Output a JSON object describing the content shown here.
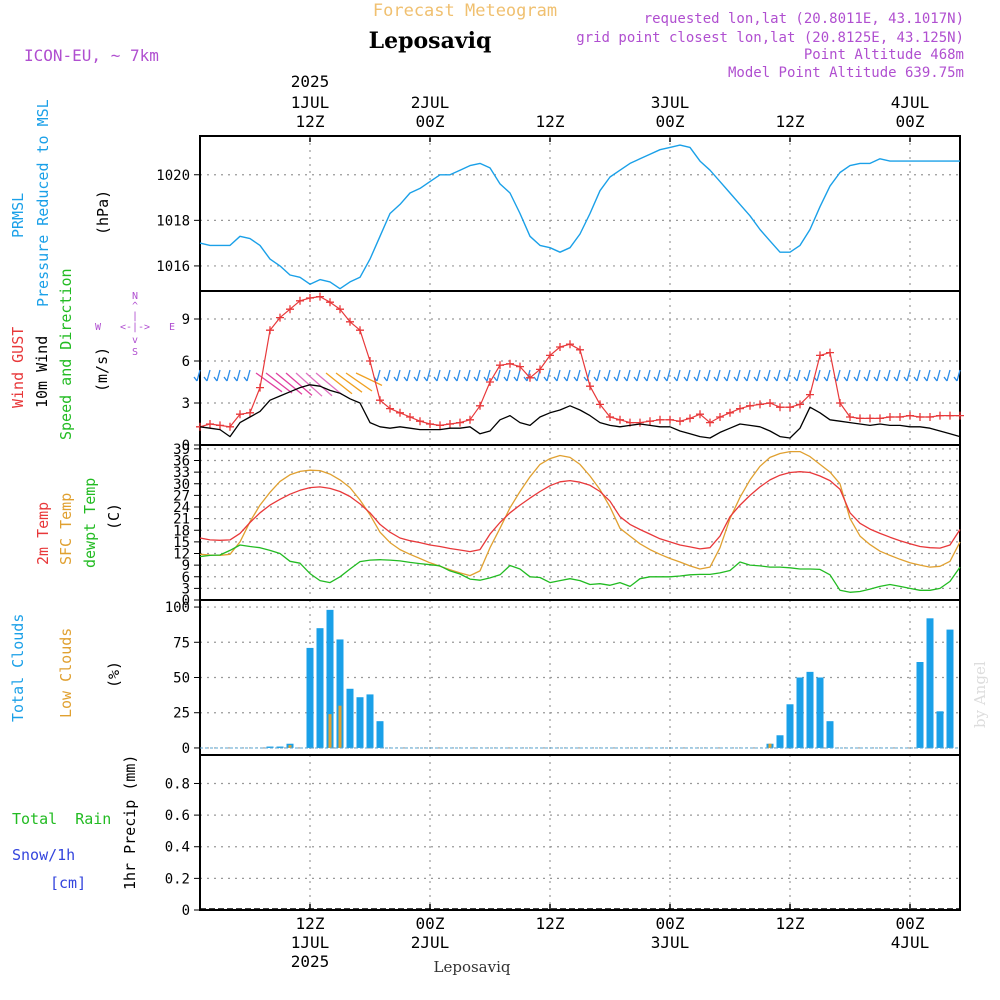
{
  "header": {
    "title": "Forecast Meteogram",
    "location": "Leposaviq",
    "model": "ICON-EU, ~ 7km",
    "requested": "requested lon,lat (20.8011E, 43.1017N)",
    "grid_point": "grid point closest lon,lat (20.8125E, 43.125N)",
    "point_altitude": "Point Altitude 468m",
    "model_altitude": "Model Point Altitude 639.75m",
    "footer_location": "Leposaviq",
    "watermark": "by Angel"
  },
  "colors": {
    "pressure": "#1aa0e8",
    "gust": "#e8383a",
    "wind": "#000000",
    "temp": "#e8383a",
    "sfc_temp": "#e0a030",
    "dewpt": "#22bb22",
    "total_clouds": "#1aa0e8",
    "low_clouds": "#e0a030",
    "rain": "#22bb22",
    "snow": "#3344dd",
    "purple": "#b04fd0",
    "title": "#f0c070"
  },
  "time_axis": {
    "top": [
      {
        "t": 0,
        "l1": "2025",
        "l2": "1JUL",
        "l3": "12Z"
      },
      {
        "t": 12,
        "l1": "",
        "l2": "2JUL",
        "l3": "00Z"
      },
      {
        "t": 24,
        "l1": "",
        "l2": "",
        "l3": "12Z"
      },
      {
        "t": 36,
        "l1": "",
        "l2": "3JUL",
        "l3": "00Z"
      },
      {
        "t": 48,
        "l1": "",
        "l2": "",
        "l3": "12Z"
      },
      {
        "t": 60,
        "l1": "",
        "l2": "4JUL",
        "l3": "00Z"
      }
    ],
    "bottom": [
      {
        "t": 0,
        "l1": "12Z",
        "l2": "1JUL",
        "l3": "2025"
      },
      {
        "t": 12,
        "l1": "00Z",
        "l2": "2JUL",
        "l3": ""
      },
      {
        "t": 24,
        "l1": "12Z",
        "l2": "",
        "l3": ""
      },
      {
        "t": 36,
        "l1": "00Z",
        "l2": "3JUL",
        "l3": ""
      },
      {
        "t": 48,
        "l1": "12Z",
        "l2": "",
        "l3": ""
      },
      {
        "t": 60,
        "l1": "00Z",
        "l2": "4JUL",
        "l3": ""
      }
    ]
  },
  "labels": {
    "pressure": [
      "PRMSL",
      "Pressure Reduced to MSL"
    ],
    "pressure_unit": "(hPa)",
    "wind_gust": "Wind GUST",
    "wind_10m": "10m Wind",
    "wind_speed": "Speed and Direction",
    "wind_unit": "(m/s)",
    "compass": {
      "n": "N",
      "s": "S",
      "w": "W",
      "e": "E",
      "ns": "|",
      "we": "<-|->",
      "ns_arrows": [
        "^",
        "v"
      ]
    },
    "temp_2m": "2m Temp",
    "temp_sfc": "SFC Temp",
    "temp_dew": "dewpt Temp",
    "temp_unit": "(C)",
    "clouds_total": "Total Clouds",
    "clouds_low": "Low Clouds",
    "clouds_unit": "(%)",
    "rain": "Total  Rain",
    "snow": "Snow/1h",
    "snow_unit": "[cm]",
    "precip": "1hr Precip (mm)"
  },
  "chart_data": [
    {
      "type": "line",
      "panel": "pressure",
      "xlabel": "",
      "ylabel": "(hPa)",
      "yticks": [
        1016,
        1018,
        1020
      ],
      "ylim": [
        1014.9,
        1021.7
      ],
      "x": [
        -11,
        -10,
        -9,
        -8,
        -7,
        -6,
        -5,
        -4,
        -3,
        -2,
        -1,
        0,
        1,
        2,
        3,
        4,
        5,
        6,
        7,
        8,
        9,
        10,
        11,
        12,
        13,
        14,
        15,
        16,
        17,
        18,
        19,
        20,
        21,
        22,
        23,
        24,
        25,
        26,
        27,
        28,
        29,
        30,
        31,
        32,
        33,
        34,
        35,
        36,
        37,
        38,
        39,
        40,
        41,
        42,
        43,
        44,
        45,
        46,
        47,
        48,
        49,
        50,
        51,
        52,
        53,
        54,
        55,
        56,
        57,
        58,
        59,
        60,
        61,
        62,
        63,
        64,
        65
      ],
      "series": [
        {
          "name": "PRMSL",
          "values": [
            1017.0,
            1016.9,
            1016.9,
            1016.9,
            1017.3,
            1017.2,
            1016.9,
            1016.3,
            1016.0,
            1015.6,
            1015.5,
            1015.2,
            1015.4,
            1015.3,
            1015.0,
            1015.3,
            1015.5,
            1016.3,
            1017.3,
            1018.3,
            1018.7,
            1019.2,
            1019.4,
            1019.7,
            1020.0,
            1020.0,
            1020.2,
            1020.4,
            1020.5,
            1020.3,
            1019.6,
            1019.2,
            1018.3,
            1017.3,
            1016.9,
            1016.8,
            1016.6,
            1016.8,
            1017.4,
            1018.3,
            1019.3,
            1019.9,
            1020.2,
            1020.5,
            1020.7,
            1020.9,
            1021.1,
            1021.2,
            1021.3,
            1021.2,
            1020.6,
            1020.2,
            1019.7,
            1019.2,
            1018.7,
            1018.2,
            1017.6,
            1017.1,
            1016.6,
            1016.6,
            1016.9,
            1017.6,
            1018.6,
            1019.5,
            1020.1,
            1020.4,
            1020.5,
            1020.5,
            1020.7,
            1020.6,
            1020.6,
            1020.6,
            1020.6,
            1020.6,
            1020.6,
            1020.6,
            1020.6
          ]
        }
      ]
    },
    {
      "type": "line",
      "panel": "wind",
      "ylabel": "(m/s)",
      "yticks": [
        0,
        3,
        6,
        9
      ],
      "ylim": [
        0,
        11
      ],
      "x": [
        -11,
        -10,
        -9,
        -8,
        -7,
        -6,
        -5,
        -4,
        -3,
        -2,
        -1,
        0,
        1,
        2,
        3,
        4,
        5,
        6,
        7,
        8,
        9,
        10,
        11,
        12,
        13,
        14,
        15,
        16,
        17,
        18,
        19,
        20,
        21,
        22,
        23,
        24,
        25,
        26,
        27,
        28,
        29,
        30,
        31,
        32,
        33,
        34,
        35,
        36,
        37,
        38,
        39,
        40,
        41,
        42,
        43,
        44,
        45,
        46,
        47,
        48,
        49,
        50,
        51,
        52,
        53,
        54,
        55,
        56,
        57,
        58,
        59,
        60,
        61,
        62,
        63,
        64,
        65
      ],
      "series": [
        {
          "name": "Wind GUST",
          "values": [
            1.3,
            1.5,
            1.4,
            1.3,
            2.2,
            2.3,
            4.1,
            8.2,
            9.1,
            9.7,
            10.3,
            10.5,
            10.6,
            10.2,
            9.7,
            8.8,
            8.2,
            6.0,
            3.2,
            2.6,
            2.3,
            2.0,
            1.7,
            1.5,
            1.4,
            1.5,
            1.6,
            1.8,
            2.8,
            4.5,
            5.7,
            5.8,
            5.6,
            4.8,
            5.4,
            6.4,
            7.0,
            7.2,
            6.8,
            4.2,
            2.9,
            2.0,
            1.8,
            1.6,
            1.6,
            1.7,
            1.8,
            1.8,
            1.7,
            1.9,
            2.2,
            1.6,
            2.0,
            2.3,
            2.6,
            2.8,
            2.9,
            3.0,
            2.7,
            2.7,
            2.9,
            3.6,
            6.4,
            6.6,
            3.0,
            2.0,
            1.9,
            1.9,
            1.9,
            2.0,
            2.0,
            2.1,
            2.0,
            2.0,
            2.1,
            2.1,
            2.1
          ]
        },
        {
          "name": "10m Wind",
          "values": [
            1.3,
            1.2,
            1.1,
            0.6,
            1.6,
            2.0,
            2.4,
            3.2,
            3.5,
            3.8,
            4.1,
            4.3,
            4.2,
            3.9,
            3.7,
            3.3,
            3.0,
            1.6,
            1.3,
            1.2,
            1.3,
            1.2,
            1.1,
            1.1,
            1.1,
            1.2,
            1.2,
            1.3,
            0.8,
            1.0,
            1.8,
            2.1,
            1.6,
            1.4,
            2.0,
            2.3,
            2.5,
            2.8,
            2.5,
            2.1,
            1.6,
            1.4,
            1.3,
            1.4,
            1.5,
            1.4,
            1.3,
            1.3,
            1.0,
            0.8,
            0.6,
            0.5,
            0.9,
            1.2,
            1.5,
            1.4,
            1.3,
            1.0,
            0.6,
            0.5,
            1.2,
            2.7,
            2.3,
            1.8,
            1.7,
            1.6,
            1.5,
            1.4,
            1.5,
            1.4,
            1.4,
            1.3,
            1.3,
            1.2,
            1.0,
            0.8,
            0.6
          ]
        }
      ]
    },
    {
      "type": "line",
      "panel": "temperature",
      "ylabel": "(C)",
      "yticks": [
        0,
        3,
        6,
        9,
        12,
        15,
        18,
        21,
        24,
        27,
        30,
        33,
        36,
        39
      ],
      "ylim": [
        0,
        40
      ],
      "x": [
        -11,
        -10,
        -9,
        -8,
        -7,
        -6,
        -5,
        -4,
        -3,
        -2,
        -1,
        0,
        1,
        2,
        3,
        4,
        5,
        6,
        7,
        8,
        9,
        10,
        11,
        12,
        13,
        14,
        15,
        16,
        17,
        18,
        19,
        20,
        21,
        22,
        23,
        24,
        25,
        26,
        27,
        28,
        29,
        30,
        31,
        32,
        33,
        34,
        35,
        36,
        37,
        38,
        39,
        40,
        41,
        42,
        43,
        44,
        45,
        46,
        47,
        48,
        49,
        50,
        51,
        52,
        53,
        54,
        55,
        56,
        57,
        58,
        59,
        60,
        61,
        62,
        63,
        64,
        65
      ],
      "series": [
        {
          "name": "2m Temp",
          "values": [
            16.0,
            15.5,
            15.4,
            15.5,
            17.2,
            20.0,
            22.5,
            24.5,
            26.0,
            27.3,
            28.3,
            29.0,
            29.2,
            28.8,
            28.0,
            26.7,
            24.8,
            22.5,
            19.5,
            17.5,
            16.0,
            15.3,
            14.8,
            14.2,
            13.8,
            13.3,
            12.9,
            12.5,
            13.0,
            17.0,
            20.0,
            22.5,
            24.5,
            26.3,
            28.0,
            29.5,
            30.5,
            30.8,
            30.4,
            29.6,
            28.0,
            25.5,
            21.5,
            19.5,
            18.2,
            17.0,
            15.8,
            15.0,
            14.2,
            13.7,
            13.2,
            13.5,
            16.5,
            21.5,
            24.5,
            27.0,
            29.2,
            31.0,
            32.2,
            32.9,
            33.1,
            32.9,
            32.0,
            30.8,
            28.6,
            22.5,
            19.8,
            18.3,
            17.2,
            16.2,
            15.3,
            14.5,
            13.8,
            13.5,
            13.4,
            14.2,
            18.2
          ]
        },
        {
          "name": "SFC Temp",
          "values": [
            11.8,
            11.6,
            11.5,
            11.8,
            15.0,
            20.2,
            24.5,
            27.8,
            30.6,
            32.3,
            33.2,
            33.5,
            33.4,
            32.5,
            31.0,
            29.0,
            25.8,
            22.0,
            17.5,
            14.8,
            13.0,
            11.8,
            10.7,
            9.6,
            8.7,
            7.8,
            7.0,
            6.3,
            7.5,
            13.5,
            18.5,
            23.8,
            28.0,
            31.8,
            35.0,
            36.5,
            37.3,
            36.8,
            35.0,
            32.0,
            28.5,
            24.0,
            18.5,
            16.5,
            14.5,
            13.0,
            11.8,
            10.7,
            9.8,
            8.8,
            8.0,
            8.5,
            13.5,
            21.0,
            26.5,
            31.0,
            34.5,
            36.8,
            37.8,
            38.3,
            38.3,
            37.0,
            35.0,
            33.0,
            30.0,
            21.0,
            16.5,
            14.3,
            12.6,
            11.5,
            10.5,
            9.6,
            9.0,
            8.5,
            8.7,
            10.0,
            15.0
          ]
        },
        {
          "name": "dewpt Temp",
          "values": [
            11.2,
            11.5,
            11.6,
            12.8,
            14.2,
            13.8,
            13.5,
            12.8,
            12.0,
            10.0,
            9.5,
            6.8,
            5.0,
            4.5,
            6.0,
            8.0,
            9.9,
            10.3,
            10.4,
            10.3,
            10.1,
            9.7,
            9.4,
            9.1,
            8.8,
            7.5,
            6.7,
            5.4,
            5.1,
            5.7,
            6.5,
            8.9,
            8.0,
            6.0,
            5.8,
            4.5,
            5.0,
            5.5,
            5.0,
            4.0,
            4.2,
            3.8,
            4.5,
            3.5,
            5.5,
            6.0,
            6.0,
            6.0,
            6.2,
            6.5,
            6.6,
            6.6,
            7.0,
            7.6,
            9.8,
            9.0,
            8.8,
            8.5,
            8.5,
            8.3,
            8.0,
            8.0,
            7.9,
            6.5,
            2.5,
            2.0,
            2.2,
            2.8,
            3.5,
            4.0,
            3.5,
            3.0,
            2.5,
            2.5,
            3.0,
            4.8,
            8.5
          ]
        }
      ]
    },
    {
      "type": "bar",
      "panel": "clouds",
      "ylabel": "(%)",
      "yticks": [
        0,
        25,
        50,
        75,
        100
      ],
      "ylim": [
        -5,
        105
      ],
      "x": [
        -4,
        -3,
        -2,
        0,
        1,
        2,
        3,
        4,
        5,
        6,
        7,
        8,
        46,
        47,
        48,
        49,
        50,
        51,
        52,
        53,
        61,
        62,
        63,
        64
      ],
      "series": [
        {
          "name": "Total Clouds",
          "values": [
            1,
            1,
            3,
            71,
            85,
            98,
            77,
            42,
            36,
            38,
            19,
            0,
            3,
            9,
            31,
            50,
            54,
            50,
            19,
            0,
            61,
            92,
            26,
            84
          ]
        },
        {
          "name": "Low Clouds",
          "values": [
            0,
            0,
            2,
            0,
            0,
            24,
            30,
            0,
            0,
            0,
            0,
            0,
            3,
            0,
            0,
            0,
            0,
            0,
            0,
            0,
            0,
            0,
            0,
            0
          ]
        }
      ]
    },
    {
      "type": "bar",
      "panel": "precip",
      "ylabel": "1hr Precip (mm)",
      "yticks": [
        0,
        0.2,
        0.4,
        0.6,
        0.8
      ],
      "ylim": [
        0,
        0.98
      ],
      "x": [],
      "series": [
        {
          "name": "Total Rain",
          "values": []
        },
        {
          "name": "Snow/1h",
          "values": []
        }
      ]
    }
  ]
}
